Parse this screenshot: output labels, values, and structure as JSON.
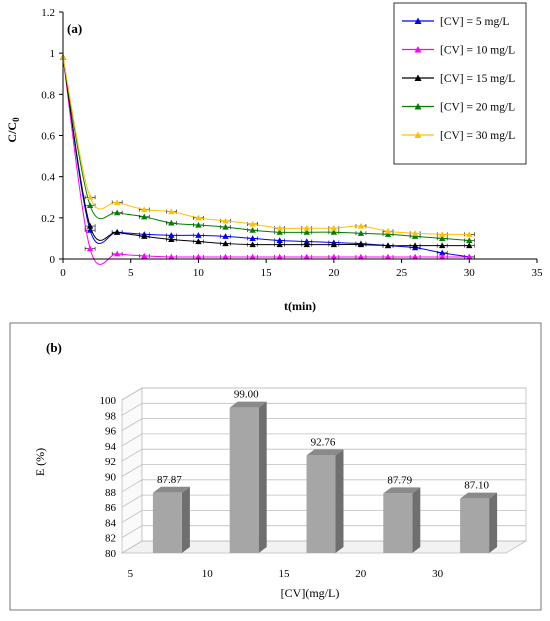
{
  "chart_data": [
    {
      "type": "line",
      "panel_label": "(a)",
      "xlabel": "t(min)",
      "ylabel": "C/C0",
      "ylabel_main": "C/C",
      "ylabel_sub": "0",
      "xlim": [
        0,
        35
      ],
      "ylim": [
        0,
        1.2
      ],
      "xticks": [
        "0",
        "5",
        "10",
        "15",
        "20",
        "25",
        "30",
        "35"
      ],
      "yticks": [
        "0",
        "0.2",
        "0.4",
        "0.6",
        "0.8",
        "1",
        "1.2"
      ],
      "grid": false,
      "legend_position": "top-right",
      "x": [
        0,
        2,
        4,
        6,
        8,
        10,
        12,
        14,
        16,
        18,
        20,
        22,
        24,
        26,
        28,
        30
      ],
      "series": [
        {
          "name": "[CV] = 5 mg/L",
          "color": "#0000ff",
          "marker": "triangle",
          "values": [
            0.98,
            0.14,
            0.13,
            0.12,
            0.115,
            0.115,
            0.11,
            0.1,
            0.09,
            0.085,
            0.08,
            0.075,
            0.065,
            0.055,
            0.03,
            0.01
          ]
        },
        {
          "name": "[CV] = 10 mg/L",
          "color": "#ff00ff",
          "marker": "triangle",
          "values": [
            0.98,
            0.05,
            0.025,
            0.015,
            0.01,
            0.01,
            0.01,
            0.01,
            0.01,
            0.01,
            0.01,
            0.01,
            0.01,
            0.01,
            0.01,
            0.01
          ]
        },
        {
          "name": "[CV] = 15 mg/L",
          "color": "#000000",
          "marker": "triangle",
          "values": [
            0.98,
            0.16,
            0.13,
            0.11,
            0.095,
            0.085,
            0.075,
            0.07,
            0.07,
            0.07,
            0.07,
            0.07,
            0.065,
            0.065,
            0.065,
            0.065
          ]
        },
        {
          "name": "[CV] = 20 mg/L",
          "color": "#008000",
          "marker": "triangle",
          "values": [
            0.98,
            0.26,
            0.225,
            0.205,
            0.175,
            0.165,
            0.155,
            0.14,
            0.13,
            0.13,
            0.13,
            0.125,
            0.12,
            0.11,
            0.1,
            0.09
          ]
        },
        {
          "name": "[CV] = 30 mg/L",
          "color": "#ffc000",
          "marker": "triangle",
          "values": [
            0.98,
            0.3,
            0.275,
            0.24,
            0.23,
            0.2,
            0.185,
            0.17,
            0.15,
            0.15,
            0.15,
            0.16,
            0.135,
            0.125,
            0.12,
            0.12
          ]
        }
      ]
    },
    {
      "type": "bar",
      "panel_label": "(b)",
      "xlabel": "[CV](mg/L)",
      "ylabel": "E (%)",
      "ylim": [
        80,
        100
      ],
      "yticks": [
        "80",
        "82",
        "84",
        "86",
        "88",
        "90",
        "92",
        "94",
        "96",
        "98",
        "100"
      ],
      "categories": [
        "5",
        "10",
        "15",
        "20",
        "30"
      ],
      "values": [
        87.87,
        99.0,
        92.76,
        87.79,
        87.1
      ],
      "data_labels": [
        "87.87",
        "99.00",
        "92.76",
        "87.79",
        "87.10"
      ],
      "grid": true,
      "bar_color": "#a6a6a6"
    }
  ]
}
